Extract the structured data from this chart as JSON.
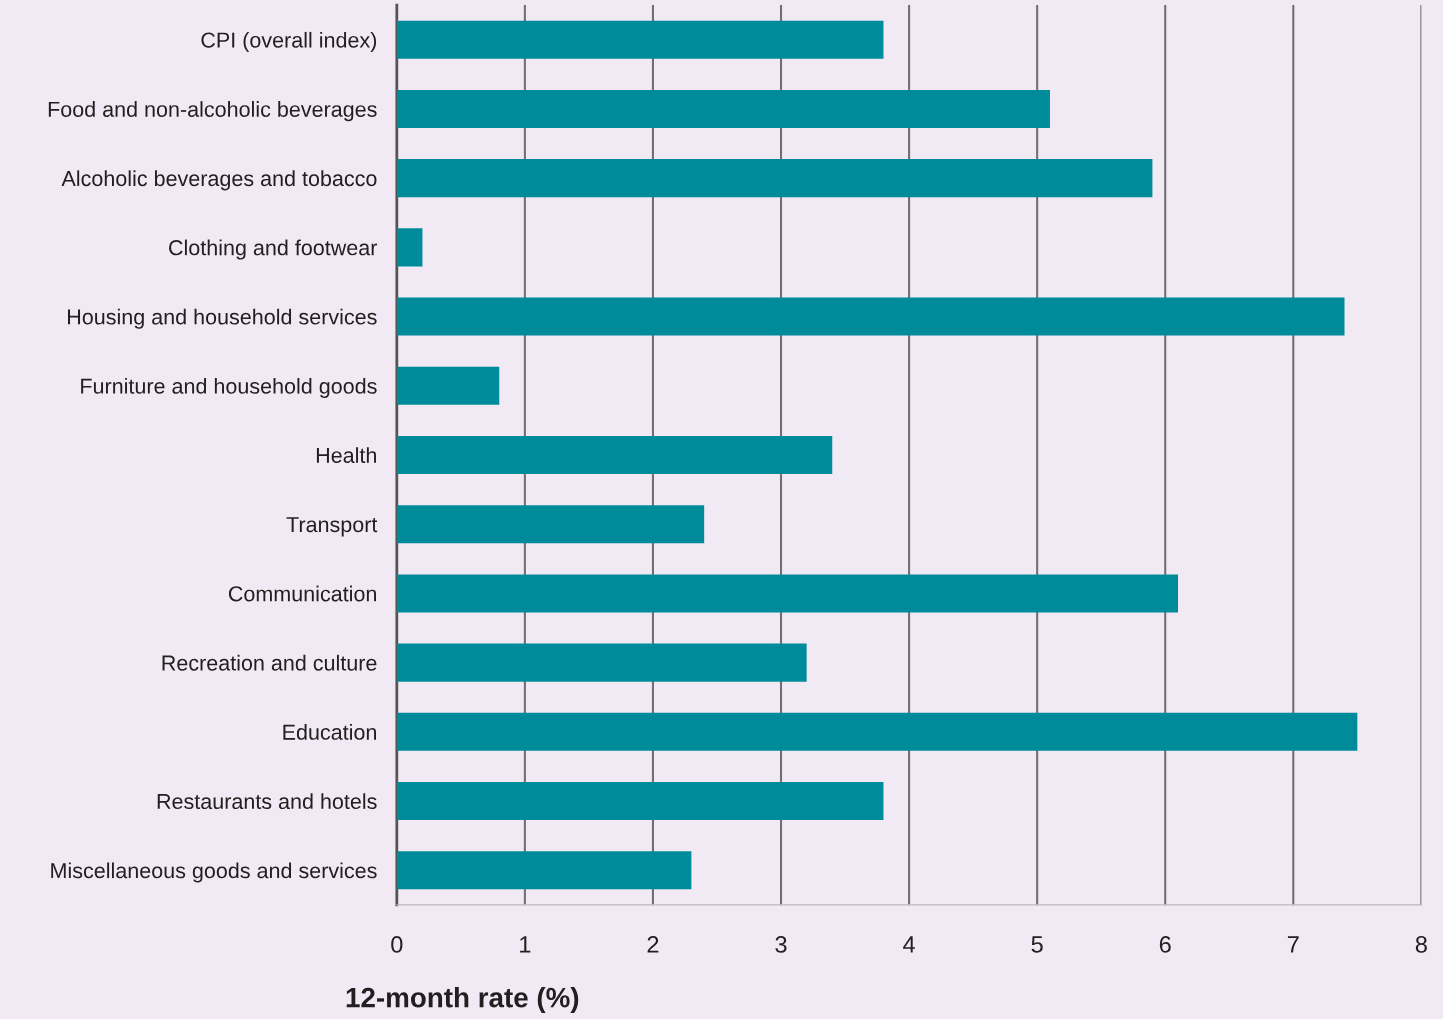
{
  "chart_data": {
    "type": "bar",
    "orientation": "horizontal",
    "xlabel": "12-month rate (%)",
    "categories": [
      "CPI (overall index)",
      "Food and non-alcoholic beverages",
      "Alcoholic beverages and tobacco",
      "Clothing and footwear",
      "Housing and household services",
      "Furniture and household goods",
      "Health",
      "Transport",
      "Communication",
      "Recreation and culture",
      "Education",
      "Restaurants and hotels",
      "Miscellaneous goods and services"
    ],
    "values": [
      3.8,
      5.1,
      5.9,
      0.2,
      7.4,
      0.8,
      3.4,
      2.4,
      6.1,
      3.2,
      7.5,
      3.8,
      2.3
    ],
    "color": "#008b9a",
    "xlim": [
      0,
      8
    ],
    "xticks": [
      0,
      1,
      2,
      3,
      4,
      5,
      6,
      7,
      8
    ],
    "grid": "x",
    "legend": false
  }
}
